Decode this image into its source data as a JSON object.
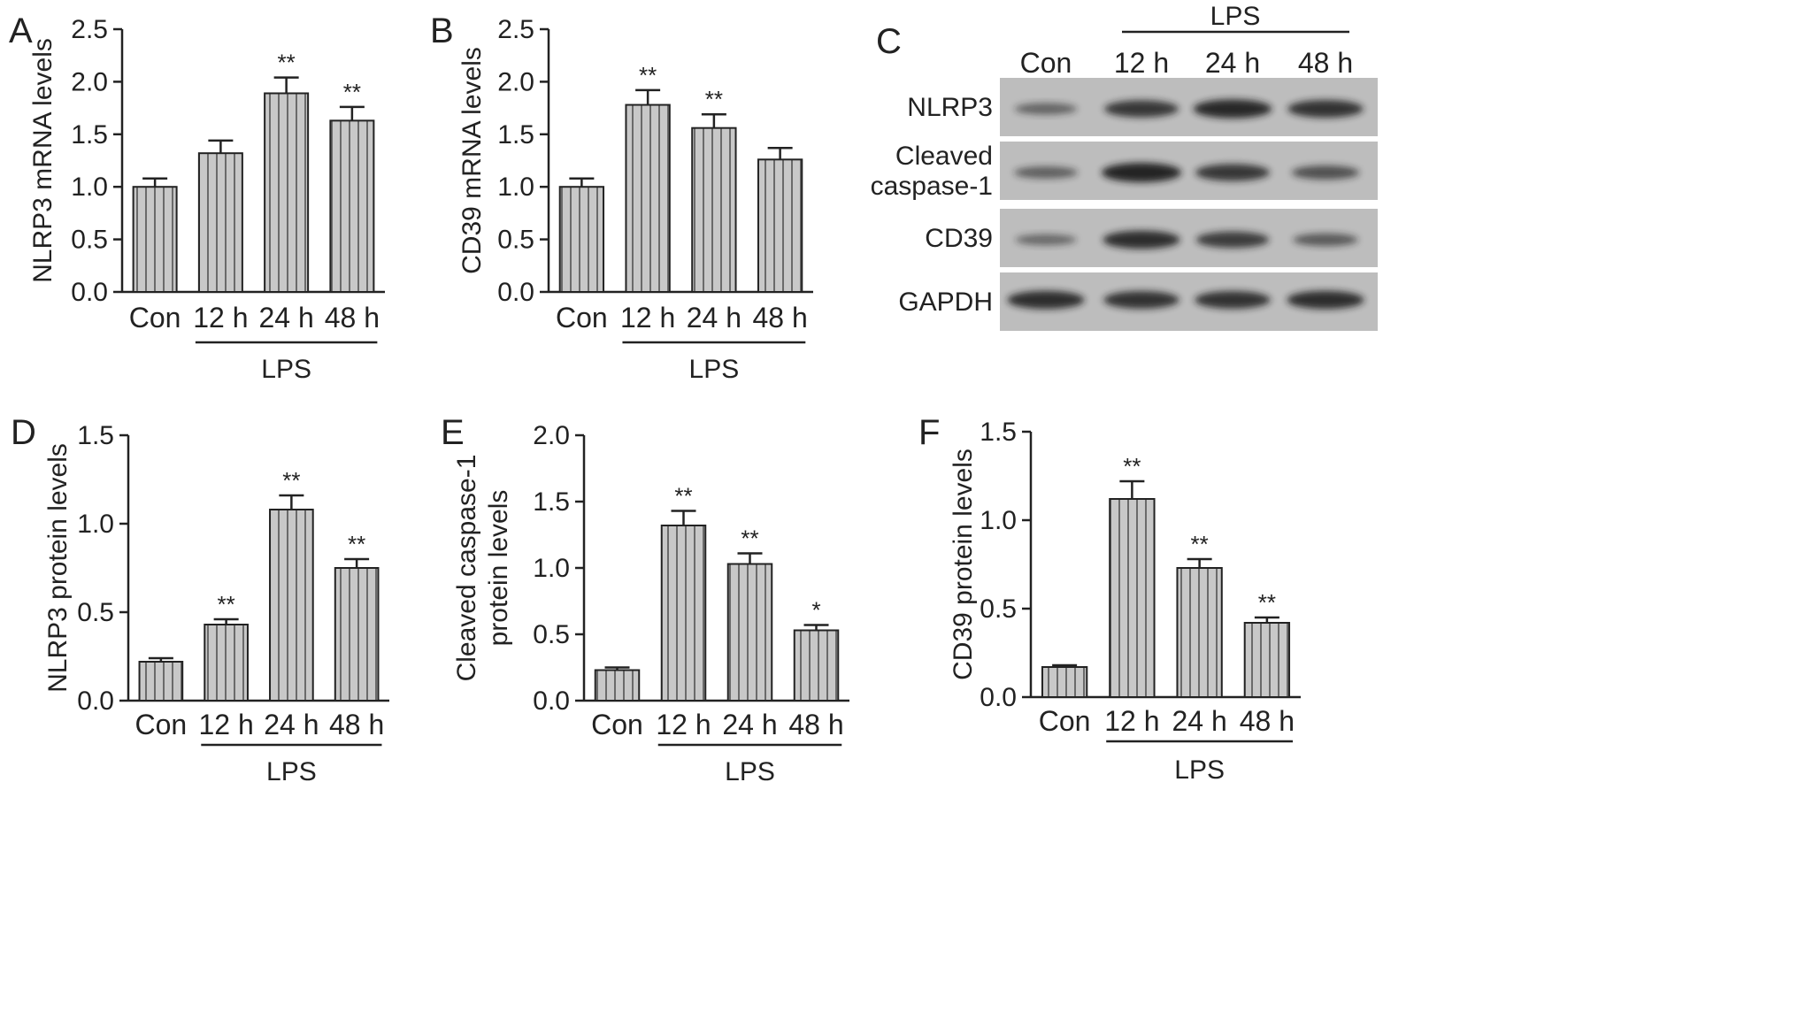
{
  "colors": {
    "bar_fill": "#c8c8c8",
    "bar_stripe": "#6a6a6a",
    "axis": "#222222",
    "blot_bg": "#bdbdbd",
    "band": "#2a2a2a"
  },
  "chart_data": [
    {
      "id": "A",
      "letter": "A",
      "type": "bar",
      "categories": [
        "Con",
        "12 h",
        "24 h",
        "48 h"
      ],
      "values": [
        1.0,
        1.32,
        1.89,
        1.63
      ],
      "errors": [
        0.08,
        0.12,
        0.15,
        0.13
      ],
      "significance": [
        "",
        "",
        "**",
        "**"
      ],
      "ylim": [
        0,
        2.5
      ],
      "yticks": [
        "0.0",
        "0.5",
        "1.0",
        "1.5",
        "2.0",
        "2.5"
      ],
      "ylabel": [
        "NLRP3 mRNA levels"
      ],
      "group_label": "LPS",
      "group_from": 1,
      "grid": false
    },
    {
      "id": "B",
      "letter": "B",
      "type": "bar",
      "categories": [
        "Con",
        "12 h",
        "24 h",
        "48 h"
      ],
      "values": [
        1.0,
        1.78,
        1.56,
        1.26
      ],
      "errors": [
        0.08,
        0.14,
        0.13,
        0.11
      ],
      "significance": [
        "",
        "**",
        "**",
        ""
      ],
      "ylim": [
        0,
        2.5
      ],
      "yticks": [
        "0.0",
        "0.5",
        "1.0",
        "1.5",
        "2.0",
        "2.5"
      ],
      "ylabel": [
        "CD39 mRNA levels"
      ],
      "group_label": "LPS",
      "group_from": 1,
      "grid": false
    },
    {
      "id": "D",
      "letter": "D",
      "type": "bar",
      "categories": [
        "Con",
        "12 h",
        "24 h",
        "48 h"
      ],
      "values": [
        0.22,
        0.43,
        1.08,
        0.75
      ],
      "errors": [
        0.02,
        0.03,
        0.08,
        0.05
      ],
      "significance": [
        "",
        "**",
        "**",
        "**"
      ],
      "ylim": [
        0,
        1.5
      ],
      "yticks": [
        "0.0",
        "0.5",
        "1.0",
        "1.5"
      ],
      "ylabel": [
        "NLRP3 protein levels"
      ],
      "group_label": "LPS",
      "group_from": 1,
      "grid": false
    },
    {
      "id": "E",
      "letter": "E",
      "type": "bar",
      "categories": [
        "Con",
        "12 h",
        "24 h",
        "48 h"
      ],
      "values": [
        0.23,
        1.32,
        1.03,
        0.53
      ],
      "errors": [
        0.02,
        0.11,
        0.08,
        0.04
      ],
      "significance": [
        "",
        "**",
        "**",
        "*"
      ],
      "ylim": [
        0,
        2.0
      ],
      "yticks": [
        "0.0",
        "0.5",
        "1.0",
        "1.5",
        "2.0"
      ],
      "ylabel": [
        "Cleaved caspase-1",
        "protein levels"
      ],
      "group_label": "LPS",
      "group_from": 1,
      "grid": false
    },
    {
      "id": "F",
      "letter": "F",
      "type": "bar",
      "categories": [
        "Con",
        "12 h",
        "24 h",
        "48 h"
      ],
      "values": [
        0.17,
        1.12,
        0.73,
        0.42
      ],
      "errors": [
        0.01,
        0.1,
        0.05,
        0.03
      ],
      "significance": [
        "",
        "**",
        "**",
        "**"
      ],
      "ylim": [
        0,
        1.5
      ],
      "yticks": [
        "0.0",
        "0.5",
        "1.0",
        "1.5"
      ],
      "ylabel": [
        "CD39 protein levels"
      ],
      "group_label": "LPS",
      "group_from": 1,
      "grid": false
    }
  ],
  "blot": {
    "letter": "C",
    "treatment_label": "LPS",
    "lanes": [
      "Con",
      "12 h",
      "24 h",
      "48 h"
    ],
    "rows": [
      {
        "label": [
          "NLRP3"
        ],
        "intensity": [
          0.35,
          0.8,
          0.95,
          0.85
        ]
      },
      {
        "label": [
          "Cleaved",
          "caspase-1"
        ],
        "intensity": [
          0.4,
          1.0,
          0.8,
          0.55
        ]
      },
      {
        "label": [
          "CD39"
        ],
        "intensity": [
          0.3,
          0.9,
          0.75,
          0.45
        ]
      },
      {
        "label": [
          "GAPDH"
        ],
        "intensity": [
          0.9,
          0.85,
          0.85,
          0.9
        ]
      }
    ]
  }
}
